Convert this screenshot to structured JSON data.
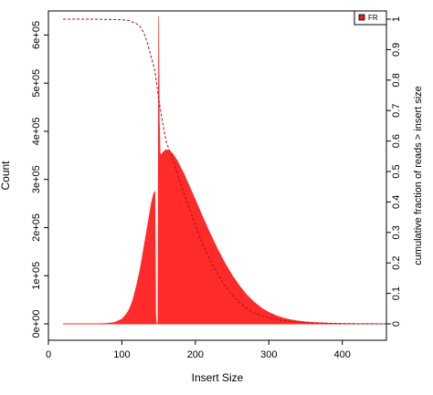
{
  "chart_data": {
    "type": "bar",
    "title": "",
    "xlabel": "Insert Size",
    "ylabel": "Count",
    "y2label": "cumulative fraction of reads > insert size",
    "xlim": [
      0,
      460
    ],
    "ylim": [
      0,
      650000
    ],
    "y2lim": [
      0,
      1
    ],
    "xticks": [
      0,
      100,
      200,
      300,
      400
    ],
    "xtick_labels": [
      "0",
      "100",
      "200",
      "300",
      "400"
    ],
    "yticks": [
      0,
      100000,
      200000,
      300000,
      400000,
      500000,
      600000
    ],
    "ytick_labels": [
      "0e+00",
      "1e+05",
      "2e+05",
      "3e+05",
      "4e+05",
      "5e+05",
      "6e+05"
    ],
    "y2ticks": [
      0,
      0.1,
      0.2,
      0.3,
      0.4,
      0.5,
      0.6,
      0.7,
      0.8,
      0.9,
      1
    ],
    "y2tick_labels": [
      "0",
      "0.1",
      "0.2",
      "0.3",
      "0.4",
      "0.5",
      "0.6",
      "0.7",
      "0.8",
      "0.9",
      "1"
    ],
    "grid": false,
    "legend": {
      "position": "top-right",
      "entries": [
        {
          "label": "FR",
          "color": "#e61e1e"
        }
      ]
    },
    "series": [
      {
        "kind": "histogram",
        "color": "#ff2a2a",
        "x": [
          20,
          60,
          80,
          90,
          100,
          105,
          110,
          115,
          120,
          125,
          130,
          135,
          140,
          143,
          145,
          146,
          147,
          148,
          149,
          150,
          151,
          152,
          153,
          155,
          160,
          165,
          170,
          175,
          180,
          185,
          190,
          200,
          210,
          220,
          230,
          240,
          250,
          260,
          270,
          280,
          290,
          300,
          310,
          320,
          330,
          340,
          350,
          360,
          380,
          400,
          420,
          440,
          460
        ],
        "y": [
          0,
          0,
          1000,
          3000,
          10000,
          18000,
          30000,
          50000,
          80000,
          115000,
          160000,
          205000,
          250000,
          270000,
          275000,
          20000,
          0,
          0,
          0,
          640000,
          420000,
          355000,
          350000,
          355000,
          362000,
          360000,
          352000,
          340000,
          325000,
          310000,
          292000,
          258000,
          222000,
          188000,
          156000,
          127000,
          101000,
          79000,
          60000,
          45000,
          33000,
          24000,
          17000,
          12000,
          8500,
          6000,
          4200,
          3000,
          1500,
          700,
          300,
          100,
          0
        ]
      },
      {
        "kind": "cumulative-line",
        "axis": "right",
        "color": "#a01818",
        "style": "dashed",
        "x": [
          20,
          60,
          100,
          110,
          120,
          125,
          130,
          135,
          140,
          145,
          150,
          155,
          160,
          170,
          180,
          190,
          200,
          210,
          220,
          230,
          240,
          250,
          260,
          270,
          280,
          300,
          320,
          340,
          360,
          380,
          400,
          420,
          460
        ],
        "y": [
          1,
          1,
          0.998,
          0.995,
          0.985,
          0.975,
          0.955,
          0.92,
          0.875,
          0.83,
          0.74,
          0.665,
          0.6,
          0.535,
          0.46,
          0.39,
          0.325,
          0.26,
          0.21,
          0.165,
          0.125,
          0.095,
          0.07,
          0.05,
          0.035,
          0.02,
          0.01,
          0.006,
          0.003,
          0.002,
          0.001,
          0.0005,
          0
        ]
      }
    ]
  }
}
